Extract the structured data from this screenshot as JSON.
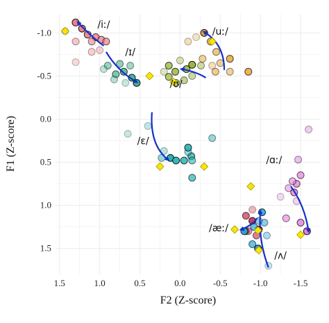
{
  "chart_data": {
    "type": "scatter",
    "xlabel": "F2 (Z-score)",
    "ylabel": "F1 (Z-score)",
    "xlim": [
      1.55,
      -1.75
    ],
    "ylim": [
      -1.22,
      1.8
    ],
    "x_ticks": [
      1.5,
      1.0,
      0.5,
      0.0,
      -0.5,
      -1.0,
      -1.5
    ],
    "x_tick_labels": [
      "1.5",
      "1.0",
      "0.5",
      "0.0",
      "-0.5",
      "-1.0",
      "-1.5"
    ],
    "y_ticks": [
      -1.0,
      -0.5,
      0.0,
      0.5,
      1.0,
      1.5
    ],
    "y_tick_labels": [
      "-1.0",
      "-0.5",
      "0.0",
      "0.5",
      "1.0",
      "1.5"
    ],
    "grid": true,
    "colors": {
      "arrow": "#1530c8",
      "target": "#ffe400",
      "target_stroke": "#9a9a00",
      "grid": "#ebebeb"
    },
    "series": [
      {
        "label": "/iː/",
        "color": "#ef7f86",
        "label_pos": [
          0.95,
          -1.1
        ],
        "points": [
          {
            "x": 1.3,
            "y": -1.12,
            "a": 1.0
          },
          {
            "x": 1.22,
            "y": -1.05,
            "a": 1.0
          },
          {
            "x": 1.15,
            "y": -0.98,
            "a": 0.9
          },
          {
            "x": 1.05,
            "y": -0.95,
            "a": 0.8
          },
          {
            "x": 0.98,
            "y": -0.92,
            "a": 0.75
          },
          {
            "x": 0.92,
            "y": -0.9,
            "a": 0.7
          },
          {
            "x": 1.1,
            "y": -0.9,
            "a": 0.6
          },
          {
            "x": 1.3,
            "y": -0.9,
            "a": 0.45
          },
          {
            "x": 1.1,
            "y": -0.78,
            "a": 0.4
          },
          {
            "x": 1.3,
            "y": -0.66,
            "a": 0.3
          },
          {
            "x": 1.0,
            "y": -0.8,
            "a": 0.35
          }
        ],
        "arrow": [
          [
            0.95,
            -0.85
          ],
          [
            1.1,
            -0.95
          ],
          [
            1.27,
            -1.12
          ]
        ],
        "target": {
          "x": 1.43,
          "y": -1.02
        }
      },
      {
        "label": "/ɪ/",
        "color": "#3fb58c",
        "label_pos": [
          0.62,
          -0.78
        ],
        "points": [
          {
            "x": 0.54,
            "y": -0.42,
            "a": 1.0
          },
          {
            "x": 0.6,
            "y": -0.48,
            "a": 0.95
          },
          {
            "x": 0.7,
            "y": -0.55,
            "a": 0.85
          },
          {
            "x": 0.8,
            "y": -0.52,
            "a": 0.7
          },
          {
            "x": 0.75,
            "y": -0.64,
            "a": 0.6
          },
          {
            "x": 0.9,
            "y": -0.62,
            "a": 0.55
          },
          {
            "x": 0.82,
            "y": -0.46,
            "a": 0.4
          },
          {
            "x": 0.95,
            "y": -0.58,
            "a": 0.35
          },
          {
            "x": 0.62,
            "y": -0.62,
            "a": 0.5
          },
          {
            "x": 0.68,
            "y": -0.42,
            "a": 0.3
          },
          {
            "x": 0.65,
            "y": 0.17,
            "a": 0.3
          }
        ],
        "arrow": [
          [
            0.92,
            -0.78
          ],
          [
            0.78,
            -0.56
          ],
          [
            0.54,
            -0.43
          ]
        ],
        "target": {
          "x": 0.38,
          "y": -0.5
        }
      },
      {
        "label": "/ʊ/",
        "color": "#9bb93f",
        "label_pos": [
          0.05,
          -0.41
        ],
        "points": [
          {
            "x": -0.15,
            "y": -0.63,
            "a": 1.0
          },
          {
            "x": -0.08,
            "y": -0.58,
            "a": 0.9
          },
          {
            "x": 0.06,
            "y": -0.55,
            "a": 0.85
          },
          {
            "x": 0.14,
            "y": -0.62,
            "a": 0.8
          },
          {
            "x": 0.14,
            "y": -0.49,
            "a": 0.75
          },
          {
            "x": 0.05,
            "y": -0.42,
            "a": 0.7
          },
          {
            "x": -0.05,
            "y": -0.45,
            "a": 0.6
          },
          {
            "x": -0.15,
            "y": -0.5,
            "a": 0.5
          },
          {
            "x": 0.0,
            "y": -0.68,
            "a": 0.4
          },
          {
            "x": 0.2,
            "y": -0.55,
            "a": 0.35
          },
          {
            "x": -0.26,
            "y": -0.62,
            "a": 0.5
          }
        ],
        "arrow": [
          [
            -0.32,
            -0.48
          ],
          [
            -0.2,
            -0.55
          ],
          [
            -0.02,
            -0.58
          ]
        ],
        "target": {
          "x": 0.08,
          "y": -0.43
        }
      },
      {
        "label": "/uː/",
        "color": "#e8a12b",
        "label_pos": [
          -0.5,
          -1.02
        ],
        "points": [
          {
            "x": -0.3,
            "y": -1.0,
            "a": 1.0
          },
          {
            "x": -0.38,
            "y": -0.9,
            "a": 0.7
          },
          {
            "x": -0.45,
            "y": -0.78,
            "a": 0.6
          },
          {
            "x": -0.62,
            "y": -0.7,
            "a": 0.8
          },
          {
            "x": -0.5,
            "y": -0.65,
            "a": 0.5
          },
          {
            "x": -0.44,
            "y": -0.55,
            "a": 0.55
          },
          {
            "x": -0.62,
            "y": -0.55,
            "a": 0.5
          },
          {
            "x": -0.85,
            "y": -0.55,
            "a": 0.8
          },
          {
            "x": -0.28,
            "y": -0.7,
            "a": 0.5
          },
          {
            "x": -0.1,
            "y": -0.9,
            "a": 0.35
          },
          {
            "x": -0.2,
            "y": -0.95,
            "a": 0.3
          },
          {
            "x": -0.4,
            "y": -0.62,
            "a": 0.35
          }
        ],
        "arrow": [
          [
            -0.55,
            -0.57
          ],
          [
            -0.55,
            -0.87
          ],
          [
            -0.3,
            -1.01
          ]
        ],
        "target": {
          "x": -0.4,
          "y": -0.9
        }
      },
      {
        "label": "/ɛ/",
        "color": "#29b4b4",
        "label_pos": [
          0.46,
          0.25
        ],
        "points": [
          {
            "x": 0.12,
            "y": 0.45,
            "a": 1.0
          },
          {
            "x": 0.05,
            "y": 0.48,
            "a": 0.95
          },
          {
            "x": -0.05,
            "y": 0.48,
            "a": 0.85
          },
          {
            "x": -0.14,
            "y": 0.43,
            "a": 0.8
          },
          {
            "x": -0.15,
            "y": 0.48,
            "a": 0.6
          },
          {
            "x": -0.1,
            "y": 0.38,
            "a": 0.5
          },
          {
            "x": 0.2,
            "y": 0.37,
            "a": 0.35
          },
          {
            "x": 0.23,
            "y": 0.45,
            "a": 0.5
          },
          {
            "x": -0.1,
            "y": 0.33,
            "a": 0.9
          },
          {
            "x": -0.4,
            "y": 0.22,
            "a": 0.5
          },
          {
            "x": -0.15,
            "y": 0.68,
            "a": 0.7
          },
          {
            "x": 0.4,
            "y": 0.08,
            "a": 0.3
          }
        ],
        "arrow": [
          [
            0.35,
            -0.08
          ],
          [
            0.38,
            0.3
          ],
          [
            0.15,
            0.47
          ]
        ],
        "target": {
          "x": -0.3,
          "y": 0.55
        }
      },
      {
        "label": "/ɑː/",
        "color": "#e47de0",
        "label_pos": [
          -1.17,
          0.47
        ],
        "points": [
          {
            "x": -1.58,
            "y": 1.3,
            "a": 1.0
          },
          {
            "x": -1.5,
            "y": 1.2,
            "a": 0.8
          },
          {
            "x": -1.42,
            "y": 0.85,
            "a": 0.8
          },
          {
            "x": -1.45,
            "y": 0.75,
            "a": 0.75
          },
          {
            "x": -1.5,
            "y": 0.65,
            "a": 0.7
          },
          {
            "x": -1.4,
            "y": 0.72,
            "a": 0.6
          },
          {
            "x": -1.35,
            "y": 0.8,
            "a": 0.5
          },
          {
            "x": -1.47,
            "y": 0.47,
            "a": 0.5
          },
          {
            "x": -1.32,
            "y": 1.15,
            "a": 0.6
          },
          {
            "x": -1.6,
            "y": 0.12,
            "a": 0.4
          },
          {
            "x": -1.25,
            "y": 0.9,
            "a": 0.3
          },
          {
            "x": -1.45,
            "y": 0.95,
            "a": 0.35
          }
        ],
        "arrow": [
          [
            -1.38,
            0.78
          ],
          [
            -1.55,
            1.0
          ],
          [
            -1.6,
            1.3
          ]
        ],
        "target": {
          "x": -1.5,
          "y": 1.34
        }
      },
      {
        "label": "/æː/",
        "color": "#cb2a4c",
        "label_pos": [
          -0.48,
          1.26
        ],
        "points": [
          {
            "x": -0.98,
            "y": 1.28,
            "a": 1.0
          },
          {
            "x": -0.9,
            "y": 1.18,
            "a": 0.9
          },
          {
            "x": -0.82,
            "y": 1.12,
            "a": 0.7
          },
          {
            "x": -0.95,
            "y": 1.35,
            "a": 0.6
          },
          {
            "x": -0.85,
            "y": 1.3,
            "a": 0.5
          },
          {
            "x": -0.9,
            "y": 1.05,
            "a": 0.35
          }
        ],
        "arrow": [
          [
            -0.96,
            1.15
          ],
          [
            -0.88,
            1.24
          ],
          [
            -0.76,
            1.28
          ]
        ],
        "target": {
          "x": -0.68,
          "y": 1.28
        }
      },
      {
        "label": "/ʌ/",
        "color": "#2aa6dc",
        "label_pos": [
          -1.25,
          1.58
        ],
        "points": [
          {
            "x": -0.97,
            "y": 1.5,
            "a": 1.0
          },
          {
            "x": -1.02,
            "y": 1.08,
            "a": 0.9
          },
          {
            "x": -0.9,
            "y": 1.45,
            "a": 0.7
          },
          {
            "x": -0.92,
            "y": 1.25,
            "a": 0.7
          },
          {
            "x": -1.05,
            "y": 1.2,
            "a": 0.55
          },
          {
            "x": -0.98,
            "y": 1.18,
            "a": 0.5
          },
          {
            "x": -1.08,
            "y": 1.35,
            "a": 0.4
          },
          {
            "x": -1.1,
            "y": 1.7,
            "a": 0.3
          },
          {
            "x": -0.8,
            "y": 1.3,
            "a": 0.9
          }
        ],
        "arrow": [
          [
            -1.1,
            1.72
          ],
          [
            -0.97,
            1.4
          ],
          [
            -1.0,
            1.07
          ]
        ],
        "target": {
          "x": -0.98,
          "y": 1.52
        }
      }
    ],
    "extra_points": [
      {
        "x": 1.43,
        "y": -1.02,
        "color": "#9aa6d8",
        "a": 0.35
      },
      {
        "x": -0.82,
        "y": 1.3,
        "color": "#5a5a5a",
        "a": 0.8
      }
    ],
    "targets": [
      {
        "x": -0.97,
        "y": 1.29
      },
      {
        "x": -0.88,
        "y": 0.78
      },
      {
        "x": 0.25,
        "y": 0.55
      }
    ]
  }
}
